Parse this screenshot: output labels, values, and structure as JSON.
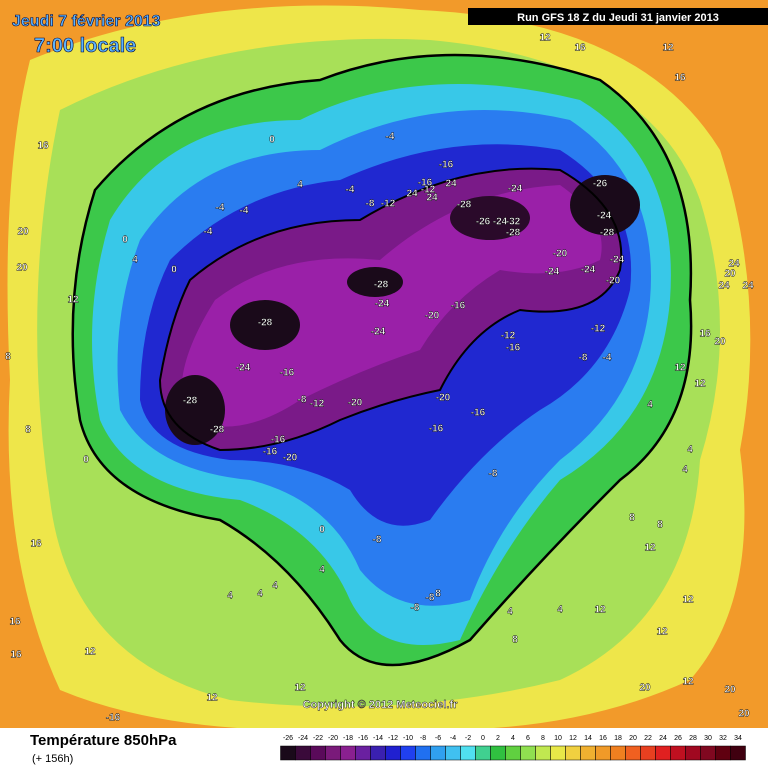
{
  "header": {
    "date": "Jeudi 7 février 2013",
    "time": "7:00 locale",
    "run": "Run GFS 18 Z du Jeudi 31 janvier 2013"
  },
  "map": {
    "copyright": "Copyright © 2012 Meteociel.fr",
    "labels": [
      16,
      20,
      20,
      12,
      8,
      8,
      0,
      16,
      16,
      16,
      12,
      12,
      12,
      -16,
      4,
      4,
      4,
      4,
      0,
      -8,
      -8,
      -8,
      8,
      4,
      8,
      4,
      12,
      12,
      12,
      12,
      20,
      12,
      20,
      20,
      8,
      8,
      4,
      4,
      4,
      12,
      12,
      16,
      20,
      20,
      24,
      24,
      24,
      0,
      4,
      -4,
      -4,
      -4,
      -4,
      -4,
      4,
      0,
      0,
      -8,
      -12,
      -16,
      -16,
      -12,
      24,
      24,
      24,
      -28,
      -26,
      -24,
      -32,
      -28,
      -24,
      -26,
      -24,
      -28,
      -24,
      -24,
      -20,
      -24,
      -20,
      -28,
      -24,
      -24,
      -28,
      -24,
      -16,
      -28,
      -28,
      -8,
      -12,
      -20,
      -20,
      -16,
      -12,
      -16,
      -12,
      -8,
      -4,
      -20,
      -16,
      -16,
      -16,
      -16,
      -20,
      -8,
      12,
      16,
      12,
      16
    ]
  },
  "footer": {
    "title": "Température 850hPa",
    "lead": "(+ 156h)"
  },
  "legend": {
    "ticks": [
      -26,
      -24,
      -22,
      -20,
      -18,
      -16,
      -14,
      -12,
      -10,
      -8,
      -6,
      -4,
      -2,
      0,
      2,
      4,
      6,
      8,
      10,
      12,
      14,
      16,
      18,
      20,
      22,
      24,
      26,
      28,
      30,
      32,
      34
    ],
    "colors": [
      "#1a0a1a",
      "#3a0a3a",
      "#5a0a5a",
      "#7a1a7a",
      "#8a2090",
      "#6a20a0",
      "#3a20b0",
      "#2020d0",
      "#2040f0",
      "#2070f0",
      "#30a0f0",
      "#40c0f0",
      "#50e0f0",
      "#40d090",
      "#30c040",
      "#60d040",
      "#90e050",
      "#c0e850",
      "#e8e848",
      "#f0d040",
      "#f0b030",
      "#f09a28",
      "#f08020",
      "#f06020",
      "#e84020",
      "#e02020",
      "#c01020",
      "#a00820",
      "#800820",
      "#600010",
      "#400010"
    ]
  }
}
